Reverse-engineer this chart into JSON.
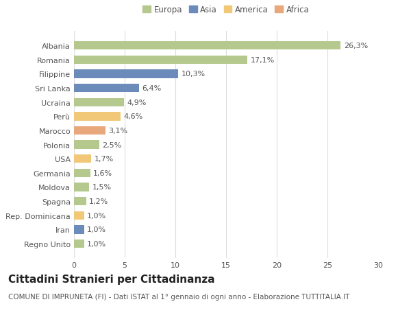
{
  "categories": [
    "Albania",
    "Romania",
    "Filippine",
    "Sri Lanka",
    "Ucraina",
    "Perù",
    "Marocco",
    "Polonia",
    "USA",
    "Germania",
    "Moldova",
    "Spagna",
    "Rep. Dominicana",
    "Iran",
    "Regno Unito"
  ],
  "values": [
    26.3,
    17.1,
    10.3,
    6.4,
    4.9,
    4.6,
    3.1,
    2.5,
    1.7,
    1.6,
    1.5,
    1.2,
    1.0,
    1.0,
    1.0
  ],
  "labels": [
    "26,3%",
    "17,1%",
    "10,3%",
    "6,4%",
    "4,9%",
    "4,6%",
    "3,1%",
    "2,5%",
    "1,7%",
    "1,6%",
    "1,5%",
    "1,2%",
    "1,0%",
    "1,0%",
    "1,0%"
  ],
  "colors": [
    "#b5c98e",
    "#b5c98e",
    "#6b8cba",
    "#6b8cba",
    "#b5c98e",
    "#f0c878",
    "#e8a87c",
    "#b5c98e",
    "#f0c878",
    "#b5c98e",
    "#b5c98e",
    "#b5c98e",
    "#f0c878",
    "#6b8cba",
    "#b5c98e"
  ],
  "legend_labels": [
    "Europa",
    "Asia",
    "America",
    "Africa"
  ],
  "legend_colors": [
    "#b5c98e",
    "#6b8cba",
    "#f0c878",
    "#e8a87c"
  ],
  "title": "Cittadini Stranieri per Cittadinanza",
  "subtitle": "COMUNE DI IMPRUNETA (FI) - Dati ISTAT al 1° gennaio di ogni anno - Elaborazione TUTTITALIA.IT",
  "xlim": [
    0,
    30
  ],
  "xticks": [
    0,
    5,
    10,
    15,
    20,
    25,
    30
  ],
  "background_color": "#ffffff",
  "plot_bg_color": "#ffffff",
  "grid_color": "#dddddd",
  "title_fontsize": 11,
  "subtitle_fontsize": 7.5,
  "label_fontsize": 8,
  "tick_fontsize": 8
}
